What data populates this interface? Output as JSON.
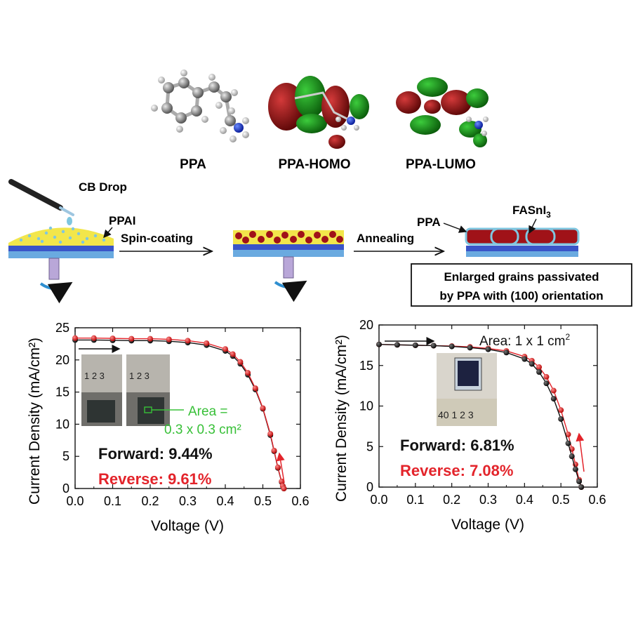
{
  "molecules": [
    {
      "label": "PPA"
    },
    {
      "label": "PPA-HOMO"
    },
    {
      "label": "PPA-LUMO"
    }
  ],
  "process": {
    "drop_label": "CB Drop",
    "ppai_label": "PPAI",
    "step1_label": "Spin-coating",
    "step2_label": "Annealing",
    "ppa_label": "PPA",
    "fasni_label": "FASnI",
    "fasni_sub": "3",
    "caption_line1": "Enlarged grains passivated",
    "caption_line2": "by PPA with (100) orientation",
    "colors": {
      "perovskite": "#a01218",
      "ppa_shell": "#7fc6e0",
      "ppai_film": "#f2e64b",
      "substrate_top": "#3a55c8",
      "substrate_bottom": "#6aaae0",
      "spin_arrow": "#2f8fd0"
    }
  },
  "chart_data": [
    {
      "type": "line",
      "xlabel": "Voltage (V)",
      "ylabel": "Current Density (mA/cm²)",
      "xlim": [
        0,
        0.6
      ],
      "ylim": [
        0,
        25
      ],
      "xticks": [
        "0.0",
        "0.1",
        "0.2",
        "0.3",
        "0.4",
        "0.5",
        "0.6"
      ],
      "yticks": [
        "0",
        "5",
        "10",
        "15",
        "20",
        "25"
      ],
      "annotation_area": "Area =",
      "annotation_area2": "0.3 x 0.3 cm²",
      "inset_scale_1": "1  2  3",
      "inset_scale_2": "1  2  3",
      "series": [
        {
          "name": "Forward: 9.44%",
          "color": "#111111",
          "x": [
            0,
            0.05,
            0.1,
            0.15,
            0.2,
            0.25,
            0.3,
            0.35,
            0.4,
            0.42,
            0.44,
            0.46,
            0.48,
            0.5,
            0.52,
            0.53,
            0.54,
            0.55,
            0.553,
            0.556
          ],
          "y": [
            23.1,
            23.1,
            23.05,
            23.0,
            23.0,
            22.9,
            22.7,
            22.3,
            21.4,
            20.6,
            19.4,
            17.7,
            15.4,
            12.4,
            8.3,
            5.8,
            3.2,
            1.0,
            0.4,
            0
          ]
        },
        {
          "name": "Reverse: 9.61%",
          "color": "#e3242b",
          "x": [
            0,
            0.05,
            0.1,
            0.15,
            0.2,
            0.25,
            0.3,
            0.35,
            0.4,
            0.42,
            0.44,
            0.46,
            0.48,
            0.5,
            0.52,
            0.53,
            0.54,
            0.55,
            0.553,
            0.556
          ],
          "y": [
            23.4,
            23.4,
            23.35,
            23.3,
            23.3,
            23.2,
            23.0,
            22.6,
            21.7,
            20.9,
            19.7,
            18.0,
            15.6,
            12.5,
            8.5,
            5.9,
            3.3,
            1.1,
            0.4,
            0
          ]
        }
      ],
      "labels": {
        "forward": "Forward: 9.44%",
        "reverse": "Reverse: 9.61%"
      }
    },
    {
      "type": "line",
      "xlabel": "Voltage (V)",
      "ylabel": "Current Density (mA/cm²)",
      "xlim": [
        0,
        0.6
      ],
      "ylim": [
        0,
        20
      ],
      "xticks": [
        "0.0",
        "0.1",
        "0.2",
        "0.3",
        "0.4",
        "0.5",
        "0.6"
      ],
      "yticks": [
        "0",
        "5",
        "10",
        "15",
        "20"
      ],
      "annotation_area": "Area: 1 x 1 cm²",
      "inset_scale": "40  1  2  3",
      "series": [
        {
          "name": "Forward: 6.81%",
          "color": "#111111",
          "x": [
            0,
            0.05,
            0.1,
            0.15,
            0.2,
            0.25,
            0.3,
            0.35,
            0.4,
            0.42,
            0.44,
            0.46,
            0.48,
            0.5,
            0.52,
            0.53,
            0.54,
            0.55,
            0.556
          ],
          "y": [
            17.6,
            17.55,
            17.5,
            17.45,
            17.35,
            17.2,
            17.0,
            16.6,
            15.8,
            15.2,
            14.2,
            12.8,
            10.9,
            8.4,
            5.4,
            3.8,
            2.2,
            0.7,
            0
          ]
        },
        {
          "name": "Reverse: 7.08%",
          "color": "#e3242b",
          "x": [
            0,
            0.05,
            0.1,
            0.15,
            0.2,
            0.25,
            0.3,
            0.35,
            0.4,
            0.42,
            0.44,
            0.46,
            0.48,
            0.5,
            0.52,
            0.53,
            0.54,
            0.55,
            0.556
          ],
          "y": [
            17.6,
            17.55,
            17.5,
            17.45,
            17.4,
            17.3,
            17.1,
            16.8,
            16.1,
            15.6,
            14.8,
            13.6,
            11.9,
            9.5,
            6.5,
            4.7,
            2.8,
            0.9,
            0
          ]
        }
      ],
      "labels": {
        "forward": "Forward: 6.81%",
        "reverse": "Reverse: 7.08%"
      }
    }
  ]
}
